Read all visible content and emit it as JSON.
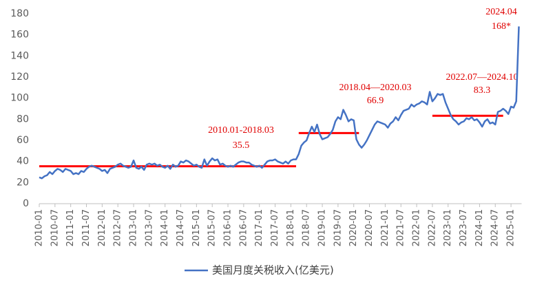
{
  "chart_data": {
    "type": "line",
    "categories": [
      "2010-01",
      null,
      null,
      null,
      null,
      null,
      "2010-07",
      null,
      null,
      null,
      null,
      null,
      "2011-01",
      null,
      null,
      null,
      null,
      null,
      "2011-07",
      null,
      null,
      null,
      null,
      null,
      "2012-01",
      null,
      null,
      null,
      null,
      null,
      "2012-07",
      null,
      null,
      null,
      null,
      null,
      "2013-01",
      null,
      null,
      null,
      null,
      null,
      "2013-07",
      null,
      null,
      null,
      null,
      null,
      "2014-01",
      null,
      null,
      null,
      null,
      null,
      "2014-07",
      null,
      null,
      null,
      null,
      null,
      "2015-01",
      null,
      null,
      null,
      null,
      null,
      "2015-07",
      null,
      null,
      null,
      null,
      null,
      "2016-01",
      null,
      null,
      null,
      null,
      null,
      "2016-07",
      null,
      null,
      null,
      null,
      null,
      "2017-01",
      null,
      null,
      null,
      null,
      null,
      "2017-07",
      null,
      null,
      null,
      null,
      null,
      "2018-01",
      null,
      null,
      null,
      null,
      null,
      "2018-07",
      null,
      null,
      null,
      null,
      null,
      "2019-01",
      null,
      null,
      null,
      null,
      null,
      "2019-07",
      null,
      null,
      null,
      null,
      null,
      "2020-01",
      null,
      null,
      null,
      null,
      null,
      "2020-07",
      null,
      null,
      null,
      null,
      null,
      "2021-01",
      null,
      null,
      null,
      null,
      null,
      "2021-07",
      null,
      null,
      null,
      null,
      null,
      "2022-01",
      null,
      null,
      null,
      null,
      null,
      "2022-07",
      null,
      null,
      null,
      null,
      null,
      "2023-01",
      null,
      null,
      null,
      null,
      null,
      "2023-07",
      null,
      null,
      null,
      null,
      null,
      "2024-01",
      null,
      null,
      null,
      null,
      null,
      "2024-07",
      null,
      null,
      null,
      null,
      null,
      "2025-01",
      null,
      null,
      null
    ],
    "series": [
      {
        "name": "美国月度关税收入(亿美元)",
        "color": "#4472c4",
        "values": [
          25,
          24,
          26,
          27,
          30,
          28,
          31,
          33,
          32,
          30,
          33,
          32,
          31,
          28,
          29,
          28,
          31,
          30,
          33,
          35,
          36,
          35,
          34,
          33,
          31,
          32,
          29,
          33,
          34,
          35,
          37,
          38,
          36,
          35,
          34,
          35,
          41,
          34,
          33,
          35,
          32,
          37,
          38,
          37,
          38,
          36,
          37,
          35,
          34,
          36,
          33,
          37,
          35,
          36,
          40,
          39,
          41,
          40,
          38,
          36,
          37,
          35,
          34,
          42,
          36,
          40,
          43,
          41,
          42,
          37,
          38,
          36,
          35,
          36,
          35,
          37,
          39,
          40,
          40,
          39,
          39,
          37,
          36,
          35,
          36,
          34,
          37,
          40,
          41,
          41,
          42,
          40,
          39,
          38,
          40,
          38,
          41,
          42,
          42,
          47,
          55,
          58,
          60,
          67,
          73,
          68,
          75,
          66,
          61,
          62,
          63,
          66,
          70,
          78,
          82,
          80,
          89,
          84,
          78,
          80,
          79,
          61,
          56,
          53,
          56,
          60,
          65,
          70,
          75,
          78,
          77,
          76,
          75,
          72,
          76,
          78,
          82,
          79,
          84,
          88,
          89,
          90,
          94,
          92,
          94,
          95,
          97,
          96,
          94,
          106,
          97,
          100,
          104,
          103,
          104,
          96,
          90,
          84,
          80,
          78,
          75,
          77,
          78,
          81,
          80,
          82,
          79,
          80,
          77,
          73,
          78,
          80,
          76,
          77,
          75,
          87,
          88,
          90,
          88,
          85,
          92,
          91,
          97,
          168
        ]
      }
    ],
    "reference_lines": [
      {
        "label": "2010.01-2018.03",
        "value": 35.5,
        "color": "#ff0000"
      },
      {
        "label": "2018.04—2020.03",
        "value": 66.9,
        "color": "#ff0000"
      },
      {
        "label": "2022.07—2024.10",
        "value": 83.3,
        "color": "#ff0000"
      }
    ],
    "annotations": [
      "2024.04",
      "168*"
    ],
    "ylim": [
      0,
      180
    ],
    "yticks": [
      0,
      20,
      40,
      60,
      80,
      100,
      120,
      140,
      160,
      180
    ],
    "grid": false
  }
}
